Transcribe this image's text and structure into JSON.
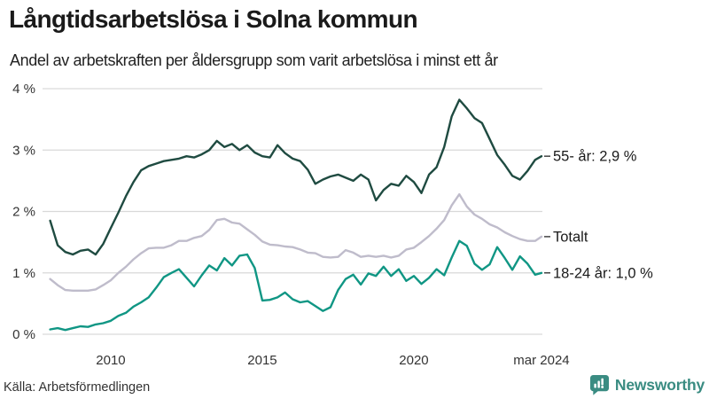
{
  "header": {
    "title": "Långtidsarbetslösa i Solna kommun",
    "subtitle": "Andel av arbetskraften per åldersgrupp som varit arbetslösa i minst ett år"
  },
  "footer": {
    "source": "Källa: Arbetsförmedlingen",
    "brand_name": "Newsworthy"
  },
  "colors": {
    "age55": "#1f4b41",
    "total": "#bfbccb",
    "age1824": "#109684",
    "grid": "#d9d9d9",
    "tick_text": "#333333",
    "legend_text": "#1a1a1a",
    "legend_dash": "#444444",
    "brand": "#3a8c82"
  },
  "chart_data": {
    "type": "line",
    "title": "Långtidsarbetslösa i Solna kommun",
    "subtitle": "Andel av arbetskraften per åldersgrupp som varit arbetslösa i minst ett år",
    "xlabel": "",
    "ylabel": "",
    "xlim": [
      2007.75,
      2024.24
    ],
    "ylim": [
      0,
      4
    ],
    "grid": "horizontal",
    "legend_position": "right-of-line-ends",
    "x_ticks": [
      {
        "value": 2010,
        "label": "2010"
      },
      {
        "value": 2015,
        "label": "2015"
      },
      {
        "value": 2020,
        "label": "2020"
      },
      {
        "value": 2024.21,
        "label": "mar 2024"
      }
    ],
    "y_ticks": [
      {
        "value": 0,
        "label": "0 %"
      },
      {
        "value": 1,
        "label": "1 %"
      },
      {
        "value": 2,
        "label": "2 %"
      },
      {
        "value": 3,
        "label": "3 %"
      },
      {
        "value": 4,
        "label": "4 %"
      }
    ],
    "x": [
      2008,
      2008.25,
      2008.5,
      2008.75,
      2009,
      2009.25,
      2009.5,
      2009.75,
      2010,
      2010.25,
      2010.5,
      2010.75,
      2011,
      2011.25,
      2011.5,
      2011.75,
      2012,
      2012.25,
      2012.5,
      2012.75,
      2013,
      2013.25,
      2013.5,
      2013.75,
      2014,
      2014.25,
      2014.5,
      2014.75,
      2015,
      2015.25,
      2015.5,
      2015.75,
      2016,
      2016.25,
      2016.5,
      2016.75,
      2017,
      2017.25,
      2017.5,
      2017.75,
      2018,
      2018.25,
      2018.5,
      2018.75,
      2019,
      2019.25,
      2019.5,
      2019.75,
      2020,
      2020.25,
      2020.5,
      2020.75,
      2021,
      2021.25,
      2021.5,
      2021.75,
      2022,
      2022.25,
      2022.5,
      2022.75,
      2023,
      2023.25,
      2023.5,
      2023.75,
      2024,
      2024.21
    ],
    "series": [
      {
        "name": "Totalt",
        "end_label": "Totalt",
        "color": "#bfbccb",
        "values": [
          0.9,
          0.8,
          0.72,
          0.71,
          0.71,
          0.71,
          0.73,
          0.8,
          0.88,
          1.0,
          1.1,
          1.22,
          1.32,
          1.4,
          1.41,
          1.41,
          1.45,
          1.52,
          1.52,
          1.57,
          1.6,
          1.7,
          1.86,
          1.88,
          1.82,
          1.8,
          1.71,
          1.62,
          1.51,
          1.46,
          1.45,
          1.43,
          1.42,
          1.38,
          1.33,
          1.32,
          1.26,
          1.25,
          1.26,
          1.37,
          1.33,
          1.26,
          1.28,
          1.26,
          1.28,
          1.25,
          1.28,
          1.38,
          1.41,
          1.5,
          1.6,
          1.72,
          1.86,
          2.1,
          2.28,
          2.08,
          1.95,
          1.88,
          1.79,
          1.74,
          1.66,
          1.6,
          1.55,
          1.52,
          1.52,
          1.59
        ]
      },
      {
        "name": "18-24 år",
        "end_label": "18-24 år: 1,0 %",
        "color": "#109684",
        "values": [
          0.08,
          0.1,
          0.07,
          0.1,
          0.13,
          0.12,
          0.16,
          0.18,
          0.22,
          0.3,
          0.35,
          0.45,
          0.52,
          0.6,
          0.76,
          0.93,
          1.0,
          1.06,
          0.92,
          0.78,
          0.96,
          1.12,
          1.04,
          1.24,
          1.12,
          1.28,
          1.3,
          1.08,
          0.55,
          0.56,
          0.6,
          0.68,
          0.57,
          0.52,
          0.54,
          0.46,
          0.38,
          0.44,
          0.72,
          0.9,
          0.97,
          0.81,
          0.99,
          0.95,
          1.1,
          0.95,
          1.06,
          0.87,
          0.95,
          0.82,
          0.92,
          1.06,
          0.96,
          1.25,
          1.52,
          1.44,
          1.15,
          1.05,
          1.14,
          1.42,
          1.24,
          1.05,
          1.27,
          1.15,
          0.97,
          1.0
        ]
      },
      {
        "name": "55- år",
        "end_label": "55- år: 2,9 %",
        "color": "#1f4b41",
        "values": [
          1.85,
          1.45,
          1.34,
          1.3,
          1.36,
          1.38,
          1.3,
          1.47,
          1.73,
          1.98,
          2.25,
          2.48,
          2.67,
          2.74,
          2.78,
          2.82,
          2.84,
          2.86,
          2.9,
          2.88,
          2.93,
          3.0,
          3.15,
          3.05,
          3.1,
          3.0,
          3.08,
          2.96,
          2.9,
          2.88,
          3.08,
          2.95,
          2.86,
          2.82,
          2.68,
          2.45,
          2.52,
          2.57,
          2.6,
          2.55,
          2.5,
          2.6,
          2.52,
          2.18,
          2.35,
          2.45,
          2.42,
          2.58,
          2.48,
          2.3,
          2.6,
          2.72,
          3.05,
          3.55,
          3.82,
          3.68,
          3.52,
          3.44,
          3.18,
          2.92,
          2.76,
          2.58,
          2.52,
          2.66,
          2.84,
          2.9
        ]
      }
    ]
  }
}
